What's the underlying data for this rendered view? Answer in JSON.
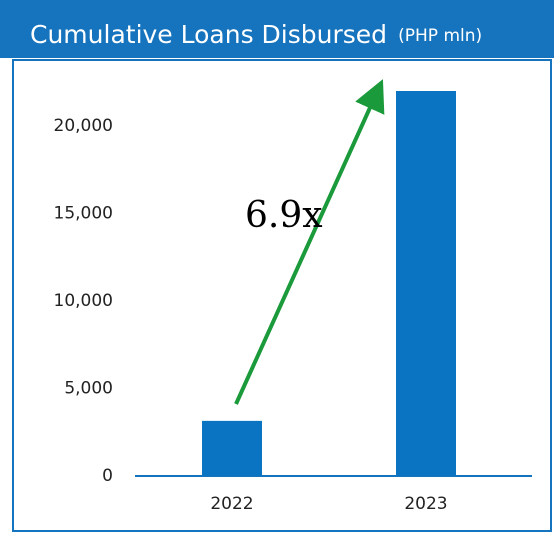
{
  "chart_data": {
    "type": "bar",
    "title": "Cumulative Loans Disbursed",
    "subtitle": "(PHP mln)",
    "annotation": "6.9x",
    "categories": [
      "2022",
      "2023"
    ],
    "values": [
      3150,
      22000
    ],
    "color": "#0b74c2",
    "ylim": [
      0,
      23000
    ],
    "yticks": [
      0,
      {
        "value": 5000,
        "label": "5,000"
      },
      {
        "value": 10000,
        "label": "10,000"
      },
      {
        "value": 15000,
        "label": "15,000"
      },
      {
        "value": 20000,
        "label": "20,000"
      }
    ],
    "grid": false
  }
}
